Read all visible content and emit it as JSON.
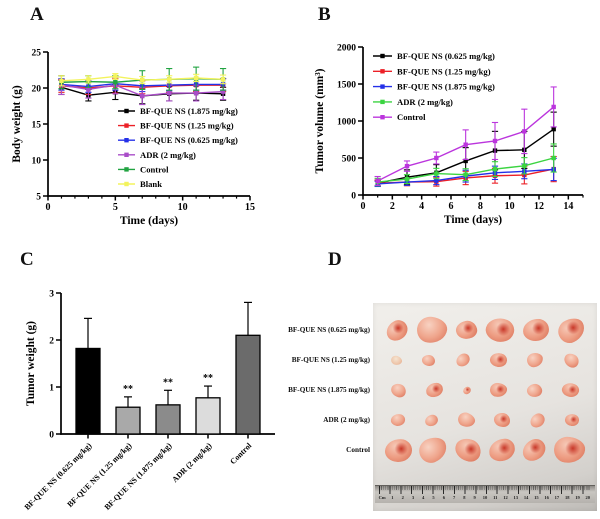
{
  "figure": {
    "panel_labels": [
      "A",
      "B",
      "C",
      "D"
    ]
  },
  "colors": {
    "black": "#000000",
    "red": "#ec2027",
    "blue": "#2430e8",
    "purple": "#a94dc8",
    "green_dark": "#21a341",
    "green_bright": "#3bd441",
    "yellow": "#f3f35d",
    "magenta": "#bb35dd",
    "axis": "#000000"
  },
  "chart_data": [
    {
      "type": "line",
      "panel": "A",
      "title": "",
      "xlabel": "Time (days)",
      "ylabel": "Body weight (g)",
      "x": [
        1,
        3,
        5,
        7,
        9,
        11,
        13
      ],
      "xlim": [
        0,
        15
      ],
      "xticks": [
        0,
        5,
        10,
        15
      ],
      "xminor_step": 1,
      "ylim": [
        5,
        25
      ],
      "yticks": [
        5,
        10,
        15,
        20,
        25
      ],
      "grid": false,
      "legend_position": "inside-bottom-right",
      "series": [
        {
          "name": "BF-QUE NS (1.875 mg/kg)",
          "color": "#000000",
          "values": [
            20.1,
            19.0,
            19.4,
            18.9,
            19.2,
            19.3,
            19.2
          ],
          "errors": [
            1.0,
            0.8,
            1.0,
            1.1,
            1.0,
            1.0,
            0.9
          ]
        },
        {
          "name": "BF-QUE NS (1.25 mg/kg)",
          "color": "#ec2027",
          "values": [
            20.3,
            20.0,
            20.3,
            20.1,
            20.3,
            20.4,
            20.4
          ],
          "errors": [
            0.9,
            0.9,
            1.0,
            0.9,
            0.9,
            0.9,
            0.9
          ]
        },
        {
          "name": "BF-QUE NS (0.625 mg/kg)",
          "color": "#2430e8",
          "values": [
            20.5,
            20.2,
            20.6,
            20.3,
            20.4,
            20.5,
            20.5
          ],
          "errors": [
            0.8,
            0.8,
            0.9,
            0.8,
            0.8,
            0.8,
            0.8
          ]
        },
        {
          "name": "ADR (2 mg/kg)",
          "color": "#a94dc8",
          "values": [
            20.4,
            19.8,
            20.4,
            18.9,
            19.3,
            19.3,
            19.5
          ],
          "errors": [
            1.3,
            1.2,
            1.2,
            1.2,
            1.1,
            1.1,
            1.1
          ]
        },
        {
          "name": "Control",
          "color": "#21a341",
          "values": [
            20.8,
            20.9,
            20.8,
            21.1,
            21.2,
            21.3,
            21.2
          ],
          "errors": [
            0.9,
            0.8,
            0.9,
            1.3,
            1.5,
            1.6,
            1.5
          ]
        },
        {
          "name": "Blank",
          "color": "#f3f35d",
          "values": [
            21.0,
            21.2,
            21.6,
            21.1,
            21.2,
            21.4,
            21.2
          ],
          "errors": [
            0.7,
            0.5,
            0.4,
            0.5,
            0.5,
            0.5,
            0.6
          ]
        }
      ]
    },
    {
      "type": "line",
      "panel": "B",
      "title": "",
      "xlabel": "Time (days)",
      "ylabel": "Tumor volume (mm³)",
      "x": [
        1,
        3,
        5,
        7,
        9,
        11,
        13
      ],
      "xlim": [
        0,
        15
      ],
      "xticks": [
        0,
        2,
        4,
        6,
        8,
        10,
        12,
        14
      ],
      "xminor_step": 1,
      "ylim": [
        0,
        2000
      ],
      "yticks": [
        0,
        500,
        1000,
        1500,
        2000
      ],
      "grid": false,
      "legend_position": "inside-top-left",
      "series": [
        {
          "name": "BF-QUE NS (0.625 mg/kg)",
          "color": "#000000",
          "values": [
            160,
            240,
            300,
            460,
            600,
            610,
            890
          ],
          "errors": [
            40,
            100,
            110,
            180,
            260,
            250,
            230
          ]
        },
        {
          "name": "BF-QUE NS (1.25 mg/kg)",
          "color": "#ec2027",
          "values": [
            160,
            175,
            180,
            230,
            260,
            270,
            350
          ],
          "errors": [
            40,
            50,
            60,
            90,
            100,
            120,
            170
          ]
        },
        {
          "name": "BF-QUE NS (1.875 mg/kg)",
          "color": "#2430e8",
          "values": [
            150,
            175,
            195,
            255,
            300,
            320,
            345
          ],
          "errors": [
            35,
            45,
            55,
            80,
            90,
            100,
            150
          ]
        },
        {
          "name": "ADR (2 mg/kg)",
          "color": "#3bd441",
          "values": [
            175,
            215,
            290,
            275,
            350,
            395,
            500
          ],
          "errors": [
            50,
            60,
            70,
            80,
            100,
            110,
            190
          ]
        },
        {
          "name": "Control",
          "color": "#bb35dd",
          "values": [
            190,
            390,
            500,
            680,
            730,
            860,
            1190
          ],
          "errors": [
            60,
            70,
            80,
            200,
            250,
            300,
            270
          ]
        }
      ]
    },
    {
      "type": "bar",
      "panel": "C",
      "title": "",
      "xlabel": "",
      "ylabel": "Tumor weight (g)",
      "categories": [
        "BF-QUE NS (0.625 mg/kg)",
        "BF-QUE NS (1.25 mg/kg)",
        "BF-QUE NS (1.875 mg/kg)",
        "ADR (2 mg/kg)",
        "Control"
      ],
      "values": [
        1.82,
        0.57,
        0.62,
        0.77,
        2.1
      ],
      "errors": [
        0.64,
        0.22,
        0.31,
        0.25,
        0.7
      ],
      "significance": [
        "",
        "**",
        "**",
        "**",
        ""
      ],
      "bar_colors": [
        "#000000",
        "#a9a9a9",
        "#8b8b8b",
        "#dcdcdc",
        "#6b6b6b"
      ],
      "ylim": [
        0,
        3
      ],
      "yticks": [
        0,
        1,
        2,
        3
      ],
      "grid": false
    }
  ],
  "photo_panel": {
    "row_labels": [
      "BF-QUE NS (0.625 mg/kg)",
      "BF-QUE NS (1.25 mg/kg)",
      "BF-QUE NS (1.875 mg/kg)",
      "ADR (2 mg/kg)",
      "Control"
    ],
    "columns_per_row": 6,
    "tumor_sizes": [
      [
        22,
        30,
        21,
        28,
        26,
        27
      ],
      [
        11,
        13,
        14,
        17,
        16,
        15
      ],
      [
        15,
        17,
        8,
        17,
        15,
        17
      ],
      [
        14,
        13,
        17,
        16,
        15,
        14
      ],
      [
        27,
        28,
        26,
        26,
        24,
        31
      ]
    ],
    "ruler_marks": [
      "Cm",
      "1",
      "2",
      "3",
      "4",
      "5",
      "6",
      "7",
      "8",
      "9",
      "10",
      "11",
      "12",
      "13",
      "14",
      "15",
      "16",
      "17",
      "18",
      "19",
      "20"
    ]
  }
}
